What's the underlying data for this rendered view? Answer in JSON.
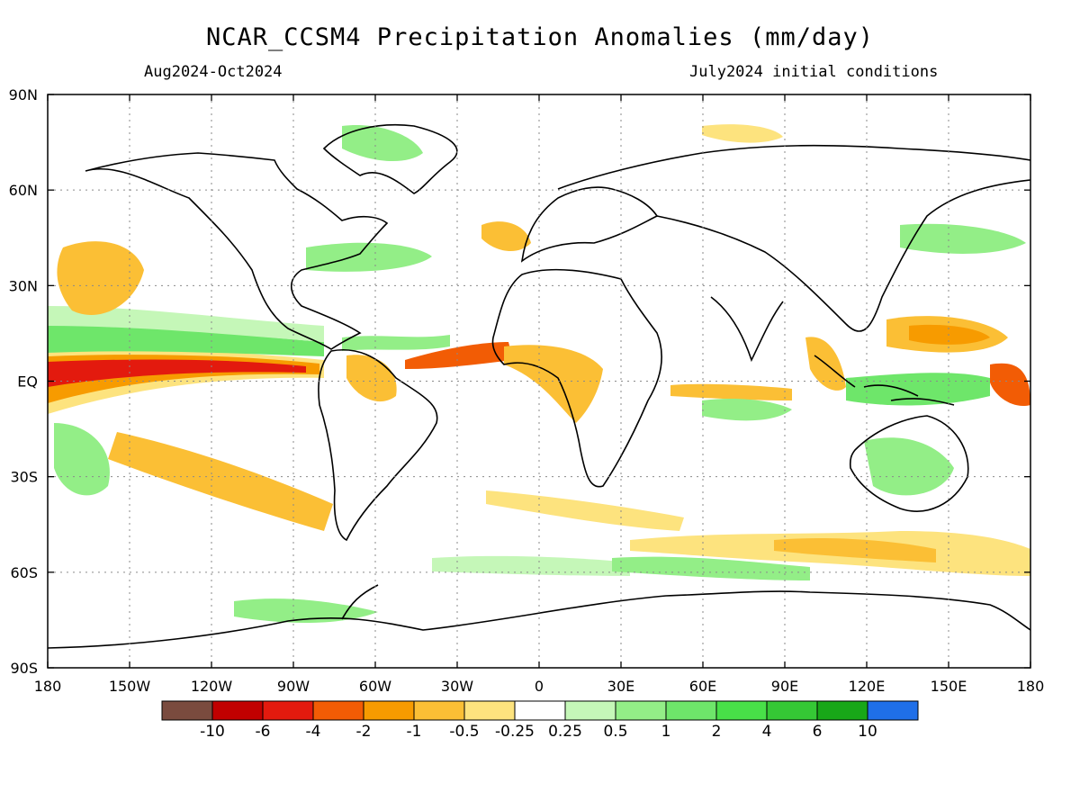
{
  "title": "NCAR_CCSM4 Precipitation Anomalies (mm/day)",
  "period": "Aug2024-Oct2024",
  "initial_conditions": "July2024 initial conditions",
  "lat_labels": [
    "90N",
    "60N",
    "30N",
    "EQ",
    "30S",
    "60S",
    "90S"
  ],
  "lon_labels": [
    "180",
    "150W",
    "120W",
    "90W",
    "60W",
    "30W",
    "0",
    "30E",
    "60E",
    "90E",
    "120E",
    "150E",
    "180"
  ],
  "colorbar": {
    "colors": [
      "#7a4b3e",
      "#c10000",
      "#e31a0e",
      "#f25c05",
      "#f79b00",
      "#fbbf35",
      "#fde37e",
      "#ffffff",
      "#c5f7b8",
      "#93ee87",
      "#6ee66a",
      "#48e048",
      "#35c835",
      "#18a718",
      "#1f6fe8"
    ],
    "labels": [
      "-10",
      "-6",
      "-4",
      "-2",
      "-1",
      "-0.5",
      "-0.25",
      "0.25",
      "0.5",
      "1",
      "2",
      "4",
      "6",
      "10"
    ]
  },
  "colors": {
    "dry_light": "#fde37e",
    "dry_mid": "#fbbf35",
    "dry_strong": "#f79b00",
    "dry_very": "#f25c05",
    "dry_extreme": "#e31a0e",
    "wet_light": "#c5f7b8",
    "wet_mid": "#93ee87",
    "wet_strong": "#6ee66a",
    "wet_very": "#48e048"
  }
}
